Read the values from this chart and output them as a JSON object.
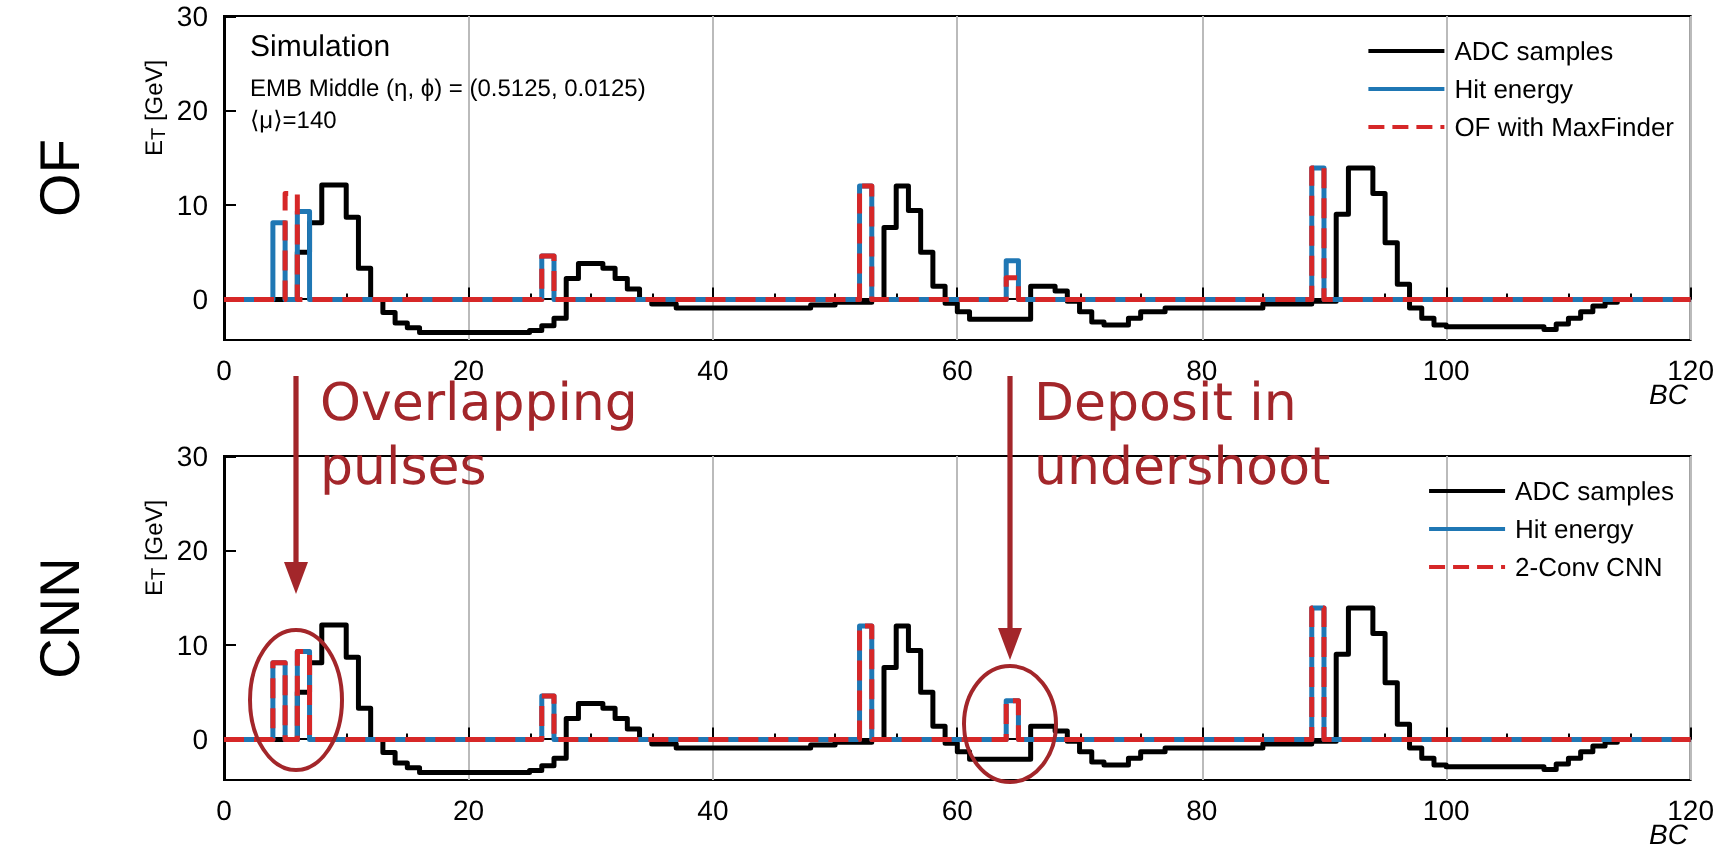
{
  "chart_data": [
    {
      "type": "step",
      "title": "OF",
      "ylabel": "E$_{T}$ [GeV]",
      "xlabel": "BC",
      "annotations": [
        "Simulation",
        "EMB Middle (η, ϕ) = (0.5125, 0.0125)",
        "⟨μ⟩=140"
      ],
      "xlim": [
        0,
        120
      ],
      "xticks": [
        0,
        20,
        40,
        60,
        80,
        100,
        120
      ],
      "ylim": [
        -4.3,
        30
      ],
      "yticks": [
        0,
        10,
        20,
        30
      ],
      "grid": "x",
      "legend": "top right",
      "series": [
        {
          "name": "ADC samples",
          "color": "#000000",
          "x": [
            0,
            6,
            7,
            8,
            10,
            11,
            12,
            13,
            14,
            15,
            16,
            25,
            26,
            27,
            28,
            29,
            31,
            32,
            33,
            34,
            35,
            37,
            48,
            50,
            53,
            54,
            55,
            56,
            57,
            58,
            59,
            60,
            61,
            66,
            68,
            69,
            70,
            71,
            72,
            74,
            75,
            77,
            85,
            89,
            91,
            92,
            94,
            95,
            96,
            97,
            98,
            99,
            100,
            108,
            109,
            110,
            111,
            112,
            113,
            114,
            120
          ],
          "values": [
            0,
            5,
            8.1,
            12.1,
            8.7,
            3.3,
            0,
            -1.4,
            -2.5,
            -3,
            -3.5,
            -3.3,
            -2.8,
            -2,
            2.2,
            3.8,
            3.3,
            2.2,
            1.1,
            0,
            -0.5,
            -0.9,
            -0.6,
            -0.3,
            0,
            7.6,
            12,
            9.4,
            5,
            1.4,
            -0.4,
            -1.3,
            -2.1,
            1.4,
            0.9,
            -0.2,
            -1.3,
            -2.4,
            -2.7,
            -2,
            -1.3,
            -0.9,
            -0.5,
            -0.2,
            9,
            13.9,
            11.2,
            6,
            1.6,
            -0.9,
            -2,
            -2.7,
            -2.9,
            -3.2,
            -2.6,
            -2,
            -1.3,
            -0.7,
            -0.3,
            0,
            0
          ]
        },
        {
          "name": "Hit energy",
          "color": "#1f77b4",
          "x": [
            0,
            4,
            5,
            6,
            7,
            26,
            27,
            52,
            53,
            64,
            65,
            89,
            90,
            120
          ],
          "values": [
            0,
            8.1,
            0,
            9.3,
            0,
            4.6,
            0,
            12,
            0,
            4.1,
            0,
            13.9,
            0,
            0
          ]
        },
        {
          "name": "OF with MaxFinder",
          "color": "#d62728",
          "line_style": "dashed",
          "x": [
            0,
            5,
            6,
            26,
            27,
            52,
            53,
            64,
            65,
            89,
            90,
            120
          ],
          "values": [
            0,
            11.2,
            0,
            4.6,
            0,
            12,
            0,
            2.3,
            0,
            13.9,
            0,
            0
          ]
        }
      ]
    },
    {
      "type": "step",
      "title": "CNN",
      "ylabel": "E$_{T}$ [GeV]",
      "xlabel": "BC",
      "annotations": [
        "Overlapping pulses",
        "Deposit in undershoot"
      ],
      "xlim": [
        0,
        120
      ],
      "xticks": [
        0,
        20,
        40,
        60,
        80,
        100,
        120
      ],
      "ylim": [
        -4.3,
        30
      ],
      "yticks": [
        0,
        10,
        20,
        30
      ],
      "grid": "x",
      "legend": "top right",
      "series": [
        {
          "name": "ADC samples",
          "color": "#000000",
          "x": [
            0,
            6,
            7,
            8,
            10,
            11,
            12,
            13,
            14,
            15,
            16,
            25,
            26,
            27,
            28,
            29,
            31,
            32,
            33,
            34,
            35,
            37,
            48,
            50,
            53,
            54,
            55,
            56,
            57,
            58,
            59,
            60,
            61,
            66,
            68,
            69,
            70,
            71,
            72,
            74,
            75,
            77,
            85,
            89,
            91,
            92,
            94,
            95,
            96,
            97,
            98,
            99,
            100,
            108,
            109,
            110,
            111,
            112,
            113,
            114,
            120
          ],
          "values": [
            0,
            5,
            8.1,
            12.1,
            8.7,
            3.3,
            0,
            -1.4,
            -2.5,
            -3,
            -3.5,
            -3.3,
            -2.8,
            -2,
            2.2,
            3.8,
            3.3,
            2.2,
            1.1,
            0,
            -0.5,
            -0.9,
            -0.6,
            -0.3,
            0,
            7.6,
            12,
            9.4,
            5,
            1.4,
            -0.4,
            -1.3,
            -2.1,
            1.4,
            0.9,
            -0.2,
            -1.3,
            -2.4,
            -2.7,
            -2,
            -1.3,
            -0.9,
            -0.5,
            -0.2,
            9,
            13.9,
            11.2,
            6,
            1.6,
            -0.9,
            -2,
            -2.7,
            -2.9,
            -3.2,
            -2.6,
            -2,
            -1.3,
            -0.7,
            -0.3,
            0,
            0
          ]
        },
        {
          "name": "Hit energy",
          "color": "#1f77b4",
          "x": [
            0,
            4,
            5,
            6,
            7,
            26,
            27,
            52,
            53,
            64,
            65,
            89,
            90,
            120
          ],
          "values": [
            0,
            8.1,
            0,
            9.3,
            0,
            4.6,
            0,
            12,
            0,
            4.1,
            0,
            13.9,
            0,
            0
          ]
        },
        {
          "name": "2-Conv CNN",
          "color": "#d62728",
          "line_style": "dashed",
          "x": [
            0,
            4,
            5,
            6,
            7,
            26,
            27,
            52,
            53,
            64,
            65,
            89,
            90,
            120
          ],
          "values": [
            0,
            8.1,
            0,
            9.3,
            0,
            4.6,
            0,
            12,
            0,
            4.1,
            0,
            13.9,
            0,
            0
          ]
        }
      ]
    }
  ]
}
